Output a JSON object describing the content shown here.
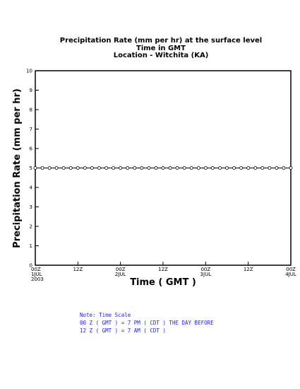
{
  "chart_data": {
    "type": "line",
    "title": "Precipitation Rate (mm per hr) at the surface level",
    "subtitle_lines": [
      "Time in GMT",
      "Location - Witchita (KA)"
    ],
    "xlabel": "Time ( GMT )",
    "ylabel": "Precipitation Rate (mm per hr)",
    "ylim": [
      0,
      10
    ],
    "yticks": [
      0,
      1,
      2,
      3,
      4,
      5,
      6,
      7,
      8,
      9,
      10
    ],
    "x_range_hours": [
      0,
      72
    ],
    "xticks": [
      {
        "hour": 0,
        "line1": "00Z",
        "line2": "1JUL",
        "line3": "2003"
      },
      {
        "hour": 12,
        "line1": "12Z",
        "line2": "",
        "line3": ""
      },
      {
        "hour": 24,
        "line1": "00Z",
        "line2": "2JUL",
        "line3": ""
      },
      {
        "hour": 36,
        "line1": "12Z",
        "line2": "",
        "line3": ""
      },
      {
        "hour": 48,
        "line1": "00Z",
        "line2": "3JUL",
        "line3": ""
      },
      {
        "hour": 60,
        "line1": "12Z",
        "line2": "",
        "line3": ""
      },
      {
        "hour": 72,
        "line1": "00Z",
        "line2": "4JUL",
        "line3": ""
      }
    ],
    "grid": false,
    "series": [
      {
        "color": "#000000",
        "marker": "open-circle",
        "x_hours": [
          0,
          2,
          4,
          6,
          8,
          10,
          12,
          14,
          16,
          18,
          20,
          22,
          24,
          26,
          28,
          30,
          32,
          34,
          36,
          38,
          40,
          42,
          44,
          46,
          48,
          50,
          52,
          54,
          56,
          58,
          60,
          62,
          64,
          66,
          68,
          70,
          72
        ],
        "values": [
          5,
          5,
          5,
          5,
          5,
          5,
          5,
          5,
          5,
          5,
          5,
          5,
          5,
          5,
          5,
          5,
          5,
          5,
          5,
          5,
          5,
          5,
          5,
          5,
          5,
          5,
          5,
          5,
          5,
          5,
          5,
          5,
          5,
          5,
          5,
          5,
          5
        ]
      }
    ]
  },
  "note": {
    "line1": "Note: Time Scale",
    "line2": "00 Z ( GMT ) = 7 PM ( CDT ) THE DAY BEFORE",
    "line3": "12 Z ( GMT ) = 7 AM ( CDT )"
  }
}
